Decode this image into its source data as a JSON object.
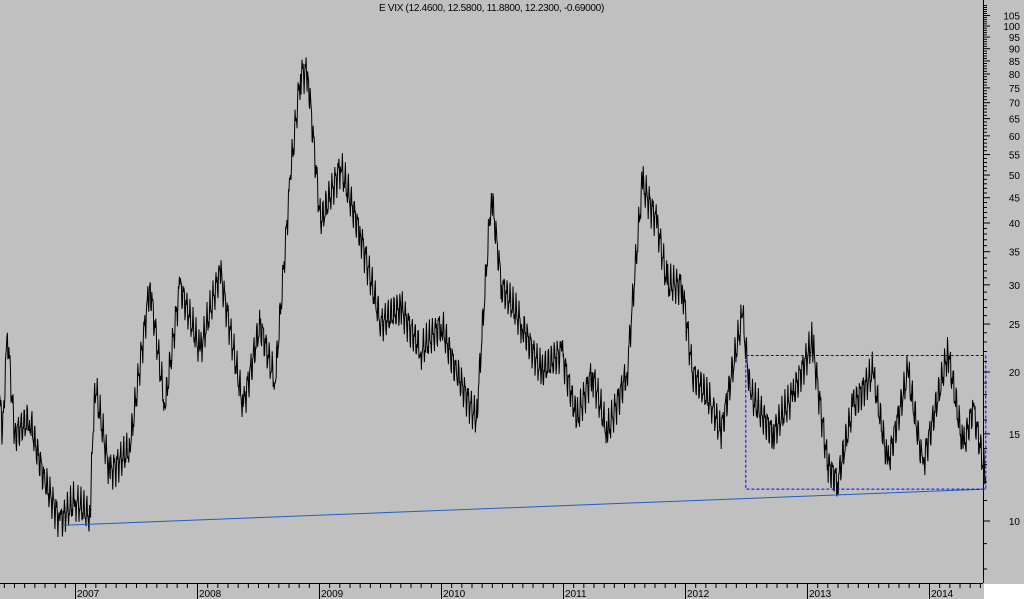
{
  "chart_data": {
    "type": "line",
    "title": "E VIX (12.4600, 12.5800, 11.8800, 12.2300, -0.69000)",
    "xlabel": "",
    "ylabel": "",
    "y_scale": "log",
    "ylim": [
      7.5,
      110
    ],
    "xlim": [
      "2006-05-20",
      "2014-06-20"
    ],
    "y_ticks": [
      10,
      15,
      20,
      25,
      30,
      35,
      40,
      45,
      50,
      55,
      60,
      65,
      70,
      75,
      80,
      85,
      90,
      95,
      100,
      105
    ],
    "x_ticks": [
      "2007",
      "2008",
      "2009",
      "2010",
      "2011",
      "2012",
      "2013",
      "2014"
    ],
    "grid": false,
    "colors": {
      "background": "#c0c0c0",
      "series": "#000000",
      "trendline": "#1f5fbf",
      "box": "#0000ff"
    },
    "series": [
      {
        "points": [
          [
            "2006-05-20",
            18
          ],
          [
            "2006-05-29",
            15
          ],
          [
            "2006-06-13",
            24
          ],
          [
            "2006-07-04",
            15
          ],
          [
            "2006-08-18",
            16
          ],
          [
            "2006-10-03",
            12
          ],
          [
            "2006-11-17",
            10
          ],
          [
            "2007-01-01",
            11
          ],
          [
            "2007-02-15",
            10.2
          ],
          [
            "2007-03-01",
            19
          ],
          [
            "2007-04-15",
            12.5
          ],
          [
            "2007-06-14",
            14
          ],
          [
            "2007-08-13",
            30
          ],
          [
            "2007-09-27",
            17
          ],
          [
            "2007-11-11",
            30
          ],
          [
            "2008-01-10",
            22
          ],
          [
            "2008-03-10",
            32
          ],
          [
            "2008-05-18",
            17
          ],
          [
            "2008-07-08",
            25
          ],
          [
            "2008-08-22",
            19
          ],
          [
            "2008-10-07",
            50
          ],
          [
            "2008-11-06",
            80
          ],
          [
            "2008-11-27",
            81
          ],
          [
            "2009-01-06",
            40
          ],
          [
            "2009-03-06",
            52
          ],
          [
            "2009-05-05",
            38
          ],
          [
            "2009-07-05",
            25
          ],
          [
            "2009-09-03",
            27
          ],
          [
            "2009-11-02",
            22
          ],
          [
            "2010-01-01",
            25
          ],
          [
            "2010-02-16",
            20
          ],
          [
            "2010-04-17",
            16
          ],
          [
            "2010-06-01",
            46
          ],
          [
            "2010-07-01",
            30
          ],
          [
            "2010-08-30",
            25
          ],
          [
            "2010-10-29",
            20
          ],
          [
            "2010-12-28",
            22
          ],
          [
            "2011-02-12",
            16
          ],
          [
            "2011-03-29",
            20
          ],
          [
            "2011-05-13",
            15
          ],
          [
            "2011-07-12",
            20
          ],
          [
            "2011-08-26",
            48
          ],
          [
            "2011-10-10",
            40
          ],
          [
            "2011-11-09",
            30
          ],
          [
            "2011-12-24",
            30
          ],
          [
            "2012-01-23",
            20
          ],
          [
            "2012-03-24",
            17
          ],
          [
            "2012-04-17",
            15
          ],
          [
            "2012-06-21",
            26
          ],
          [
            "2012-07-15",
            18
          ],
          [
            "2012-09-20",
            15
          ],
          [
            "2012-11-19",
            18
          ],
          [
            "2013-01-17",
            23
          ],
          [
            "2013-03-04",
            13
          ],
          [
            "2013-04-03",
            12
          ],
          [
            "2013-05-18",
            17
          ],
          [
            "2013-07-17",
            20
          ],
          [
            "2013-08-31",
            13
          ],
          [
            "2013-10-30",
            20
          ],
          [
            "2013-12-14",
            13
          ],
          [
            "2014-02-27",
            22
          ],
          [
            "2014-04-13",
            14
          ],
          [
            "2014-05-13",
            17
          ],
          [
            "2014-06-20",
            12.2
          ]
        ]
      }
    ],
    "annotations": {
      "trendline": [
        [
          "2006-11-20",
          9.8
        ],
        [
          "2014-06-20",
          11.6
        ]
      ],
      "box": {
        "x": [
          "2012-07-01",
          "2014-06-20"
        ],
        "y": [
          11.6,
          21.6
        ]
      }
    }
  }
}
